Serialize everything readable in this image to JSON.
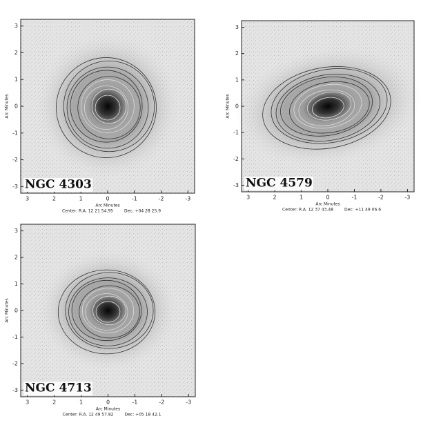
{
  "panels": [
    {
      "name": "NGC 4303",
      "x_label": "Arc Minutes",
      "y_label": "Arc Minutes",
      "x_ticks": [
        3,
        2,
        1,
        0,
        -1,
        -2,
        -3
      ],
      "y_ticks": [
        3,
        2,
        1,
        0,
        -1,
        -2,
        -3
      ],
      "center": "Center: R.A. 12 21 54.95",
      "dec": "Dec: +04 28 25.9"
    },
    {
      "name": "NGC 4579",
      "x_label": "Arc Minutes",
      "y_label": "Arc Minutes",
      "x_ticks": [
        3,
        2,
        1,
        0,
        -1,
        -2,
        -3
      ],
      "y_ticks": [
        3,
        2,
        1,
        0,
        -1,
        -2,
        -3
      ],
      "center": "Center: R.A. 12 37 43.48",
      "dec": "Dec: +11 49 06.6"
    },
    {
      "name": "NGC 4713",
      "x_label": "Arc Minutes",
      "y_label": "Arc Minutes",
      "x_ticks": [
        3,
        2,
        1,
        0,
        -1,
        -2,
        -3
      ],
      "y_ticks": [
        3,
        2,
        1,
        0,
        -1,
        -2,
        -3
      ],
      "center": "Center: R.A. 12 49 57.82",
      "dec": "Dec: +05 18 42.1"
    }
  ]
}
